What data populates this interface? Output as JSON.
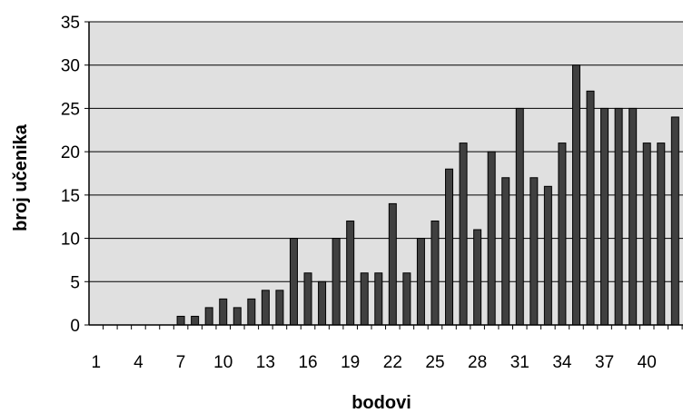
{
  "chart_data": {
    "type": "bar",
    "title": "",
    "xlabel": "bodovi",
    "ylabel": "broj učenika",
    "ylim": [
      0,
      35
    ],
    "yticks": [
      0,
      5,
      10,
      15,
      20,
      25,
      30,
      35
    ],
    "xtick_labels": [
      "1",
      "4",
      "7",
      "10",
      "13",
      "16",
      "19",
      "22",
      "25",
      "28",
      "31",
      "34",
      "37",
      "40"
    ],
    "categories": [
      1,
      2,
      3,
      4,
      5,
      6,
      7,
      8,
      9,
      10,
      11,
      12,
      13,
      14,
      15,
      16,
      17,
      18,
      19,
      20,
      21,
      22,
      23,
      24,
      25,
      26,
      27,
      28,
      29,
      30,
      31,
      32,
      33,
      34,
      35,
      36,
      37,
      38,
      39,
      40,
      41,
      42
    ],
    "values": [
      0,
      0,
      0,
      0,
      0,
      0,
      1,
      1,
      2,
      3,
      2,
      3,
      4,
      4,
      10,
      6,
      5,
      10,
      12,
      6,
      6,
      14,
      6,
      10,
      12,
      18,
      21,
      11,
      20,
      17,
      25,
      17,
      16,
      21,
      30,
      27,
      25,
      25,
      25,
      21,
      21,
      24
    ],
    "grid": true,
    "colors": {
      "plot_background": "#e0e0e0",
      "bar_fill": "#404040",
      "bar_stroke": "#000000",
      "gridline": "#000000"
    }
  }
}
